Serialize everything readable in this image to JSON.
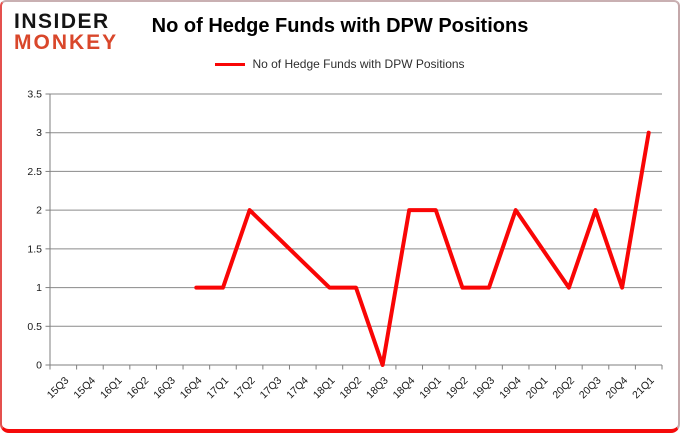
{
  "page": {
    "logo": {
      "line1": "INSIDER",
      "line2": "MONKEY",
      "line1_color": "#141414",
      "monkey_color": "#d9472b"
    }
  },
  "chart_data": {
    "type": "line",
    "title": "No of Hedge Funds with DPW Positions",
    "xlabel": "",
    "ylabel": "",
    "categories": [
      "15Q3",
      "15Q4",
      "16Q1",
      "16Q2",
      "16Q3",
      "16Q4",
      "17Q1",
      "17Q2",
      "17Q3",
      "17Q4",
      "18Q1",
      "18Q2",
      "18Q3",
      "18Q4",
      "19Q1",
      "19Q2",
      "19Q3",
      "19Q4",
      "20Q1",
      "20Q2",
      "20Q3",
      "20Q4",
      "21Q1"
    ],
    "series": [
      {
        "name": "No of Hedge Funds with DPW Positions",
        "color": "#f90606",
        "values": [
          null,
          null,
          null,
          null,
          null,
          1,
          1,
          2,
          1.667,
          1.333,
          1,
          1,
          0,
          2,
          2,
          1,
          1,
          2,
          1.5,
          1,
          2,
          1,
          3
        ]
      }
    ],
    "ylim": [
      0,
      3.5
    ],
    "yticks": [
      0,
      0.5,
      1,
      1.5,
      2,
      2.5,
      3,
      3.5
    ],
    "grid": true,
    "legend_position": "top",
    "gridline_color": "#8a8a8a",
    "axis_color": "#7f7f7f",
    "label_color": "#1a1a1a"
  }
}
